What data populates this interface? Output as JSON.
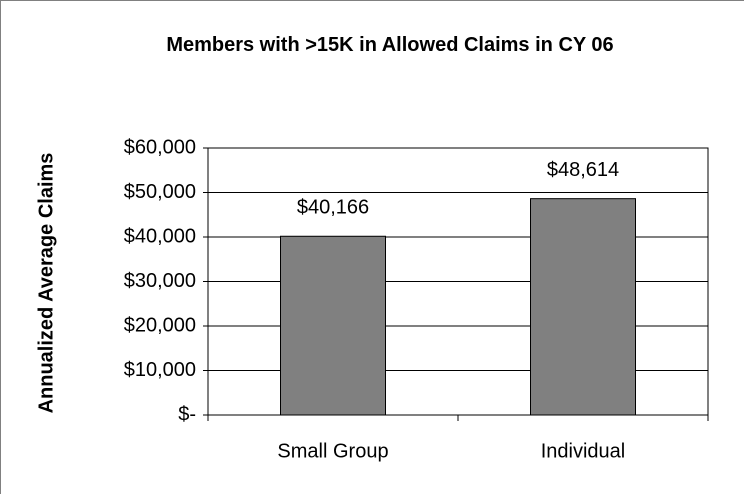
{
  "chart_data": {
    "type": "bar",
    "title": "Members with >15K in Allowed Claims in CY 06",
    "y_label": "Annualized Average Claims",
    "categories": [
      "Small Group",
      "Individual"
    ],
    "values": [
      40166,
      48614
    ],
    "value_labels": [
      "$40,166",
      "$48,614"
    ],
    "color": "#808080",
    "ylim": [
      0,
      60000
    ],
    "yticks": [
      {
        "value": 0,
        "label": "$-"
      },
      {
        "value": 10000,
        "label": "$10,000"
      },
      {
        "value": 20000,
        "label": "$20,000"
      },
      {
        "value": 30000,
        "label": "$30,000"
      },
      {
        "value": 40000,
        "label": "$40,000"
      },
      {
        "value": 50000,
        "label": "$50,000"
      },
      {
        "value": 60000,
        "label": "$60,000"
      }
    ],
    "grid": true
  }
}
